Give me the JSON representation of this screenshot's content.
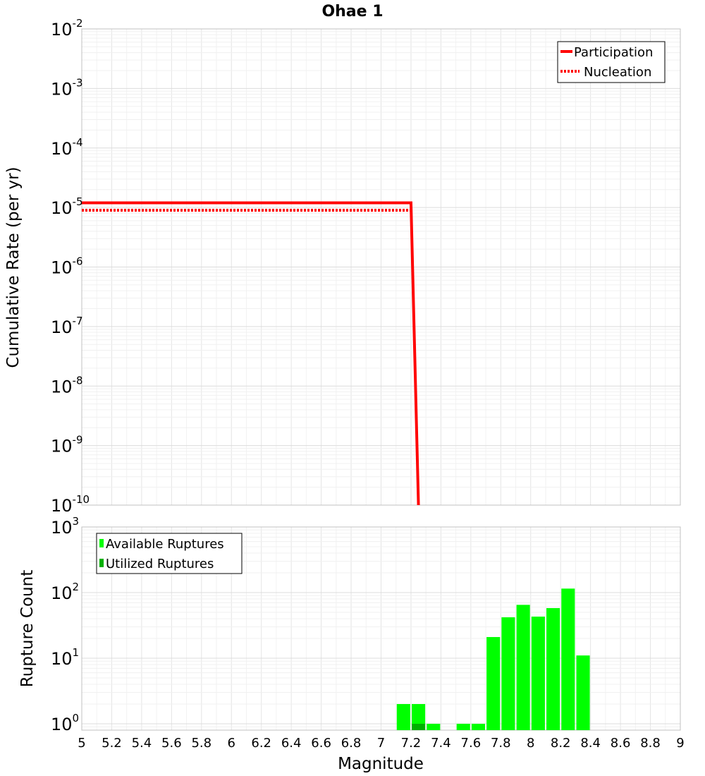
{
  "chart_data": [
    {
      "type": "line",
      "title": "Ohae 1",
      "xlabel": "Magnitude",
      "ylabel": "Cumulative Rate (per yr)",
      "xlim": [
        5,
        9
      ],
      "ylim": [
        1e-10,
        0.01
      ],
      "yscale": "log",
      "grid": true,
      "ytick_labels": [
        {
          "base": "10",
          "exp": "-10"
        },
        {
          "base": "10",
          "exp": "-9"
        },
        {
          "base": "10",
          "exp": "-8"
        },
        {
          "base": "10",
          "exp": "-7"
        },
        {
          "base": "10",
          "exp": "-6"
        },
        {
          "base": "10",
          "exp": "-5"
        },
        {
          "base": "10",
          "exp": "-4"
        },
        {
          "base": "10",
          "exp": "-3"
        },
        {
          "base": "10",
          "exp": "-2"
        }
      ],
      "legend": {
        "position": "top-right",
        "entries": [
          {
            "label": "Participation",
            "style": "solid"
          },
          {
            "label": "Nucleation",
            "style": "dotted"
          }
        ]
      },
      "series": [
        {
          "name": "Participation",
          "color": "#ff0000",
          "style": "solid",
          "x": [
            5.0,
            7.2,
            7.25
          ],
          "y": [
            1.2e-05,
            1.2e-05,
            1e-10
          ]
        },
        {
          "name": "Nucleation",
          "color": "#ff0000",
          "style": "dotted",
          "x": [
            5.0,
            7.2
          ],
          "y": [
            9e-06,
            9e-06
          ]
        }
      ]
    },
    {
      "type": "bar",
      "xlabel": "Magnitude",
      "ylabel": "Rupture Count",
      "xlim": [
        5,
        9
      ],
      "ylim": [
        0.8,
        1000
      ],
      "yscale": "log",
      "grid": true,
      "xticks": [
        "5",
        "5.2",
        "5.4",
        "5.6",
        "5.8",
        "6",
        "6.2",
        "6.4",
        "6.6",
        "6.8",
        "7",
        "7.2",
        "7.4",
        "7.6",
        "7.8",
        "8",
        "8.2",
        "8.4",
        "8.6",
        "8.8",
        "9"
      ],
      "ytick_labels": [
        {
          "base": "10",
          "exp": "0"
        },
        {
          "base": "10",
          "exp": "1"
        },
        {
          "base": "10",
          "exp": "2"
        },
        {
          "base": "10",
          "exp": "3"
        }
      ],
      "legend": {
        "position": "top-left",
        "entries": [
          {
            "label": "Available Ruptures",
            "color": "#00ff00"
          },
          {
            "label": "Utilized Ruptures",
            "color": "#00b000"
          }
        ]
      },
      "bar_width": 0.09,
      "series": [
        {
          "name": "Available Ruptures",
          "color": "#00ff00",
          "x": [
            7.15,
            7.25,
            7.35,
            7.55,
            7.65,
            7.75,
            7.85,
            7.95,
            8.05,
            8.15,
            8.25,
            8.35
          ],
          "values": [
            2,
            2,
            1,
            1,
            1,
            21,
            42,
            65,
            43,
            58,
            115,
            11
          ]
        },
        {
          "name": "Utilized Ruptures",
          "color": "#00b000",
          "x": [
            7.25
          ],
          "values": [
            1
          ]
        }
      ]
    }
  ]
}
